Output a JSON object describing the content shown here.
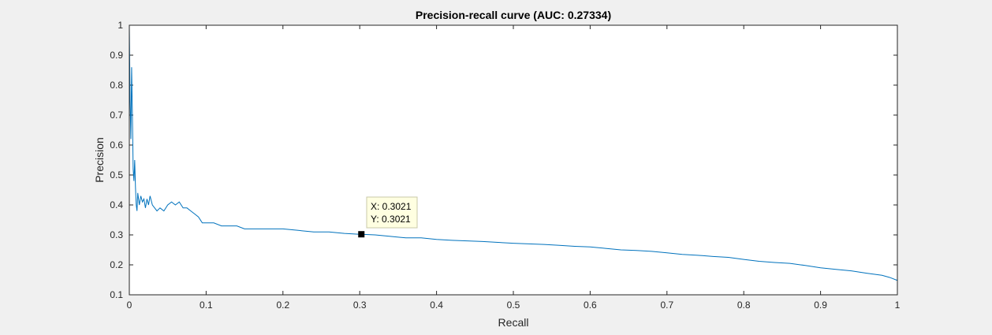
{
  "chart_data": {
    "type": "line",
    "title": "Precision-recall curve (AUC: 0.27334)",
    "xlabel": "Recall",
    "ylabel": "Precision",
    "xlim": [
      0,
      1
    ],
    "ylim": [
      0.1,
      1
    ],
    "xticks": [
      0,
      0.1,
      0.2,
      0.3,
      0.4,
      0.5,
      0.6,
      0.7,
      0.8,
      0.9,
      1
    ],
    "xtick_labels": [
      "0",
      "0.1",
      "0.2",
      "0.3",
      "0.4",
      "0.5",
      "0.6",
      "0.7",
      "0.8",
      "0.9",
      "1"
    ],
    "yticks": [
      0.1,
      0.2,
      0.3,
      0.4,
      0.5,
      0.6,
      0.7,
      0.8,
      0.9,
      1
    ],
    "ytick_labels": [
      "0.1",
      "0.2",
      "0.3",
      "0.4",
      "0.5",
      "0.6",
      "0.7",
      "0.8",
      "0.9",
      "1"
    ],
    "grid": false,
    "box": true,
    "line_color": "#0072bd",
    "series": [
      {
        "x": [
          0,
          0.001,
          0.002,
          0.003,
          0.004,
          0.005,
          0.006,
          0.007,
          0.008,
          0.009,
          0.01,
          0.011,
          0.012,
          0.013,
          0.015,
          0.017,
          0.019,
          0.021,
          0.023,
          0.025,
          0.027,
          0.03,
          0.033,
          0.036,
          0.04,
          0.045,
          0.05,
          0.055,
          0.06,
          0.065,
          0.07,
          0.075,
          0.08,
          0.085,
          0.09,
          0.095,
          0.1,
          0.11,
          0.12,
          0.13,
          0.14,
          0.15,
          0.16,
          0.17,
          0.18,
          0.19,
          0.2,
          0.22,
          0.24,
          0.26,
          0.28,
          0.3,
          0.3021,
          0.32,
          0.34,
          0.36,
          0.38,
          0.4,
          0.42,
          0.44,
          0.46,
          0.48,
          0.5,
          0.52,
          0.54,
          0.56,
          0.58,
          0.6,
          0.62,
          0.64,
          0.66,
          0.68,
          0.7,
          0.72,
          0.74,
          0.76,
          0.78,
          0.8,
          0.82,
          0.84,
          0.86,
          0.88,
          0.9,
          0.92,
          0.94,
          0.96,
          0.98,
          0.99,
          1.0
        ],
        "y": [
          1.0,
          0.75,
          0.62,
          0.86,
          0.7,
          0.52,
          0.48,
          0.55,
          0.46,
          0.4,
          0.38,
          0.44,
          0.42,
          0.4,
          0.43,
          0.41,
          0.42,
          0.39,
          0.42,
          0.4,
          0.43,
          0.4,
          0.39,
          0.38,
          0.39,
          0.38,
          0.4,
          0.41,
          0.4,
          0.41,
          0.39,
          0.39,
          0.38,
          0.37,
          0.36,
          0.34,
          0.34,
          0.34,
          0.33,
          0.33,
          0.33,
          0.32,
          0.32,
          0.32,
          0.32,
          0.32,
          0.32,
          0.315,
          0.31,
          0.31,
          0.305,
          0.302,
          0.3021,
          0.3,
          0.295,
          0.29,
          0.29,
          0.285,
          0.282,
          0.28,
          0.278,
          0.275,
          0.272,
          0.27,
          0.268,
          0.265,
          0.262,
          0.26,
          0.255,
          0.25,
          0.248,
          0.245,
          0.24,
          0.235,
          0.232,
          0.228,
          0.225,
          0.218,
          0.212,
          0.208,
          0.205,
          0.198,
          0.19,
          0.185,
          0.18,
          0.172,
          0.165,
          0.158,
          0.148
        ]
      }
    ],
    "datatip": {
      "x": 0.3021,
      "y": 0.3021,
      "x_text": "X: 0.3021",
      "y_text": "Y: 0.3021"
    }
  }
}
